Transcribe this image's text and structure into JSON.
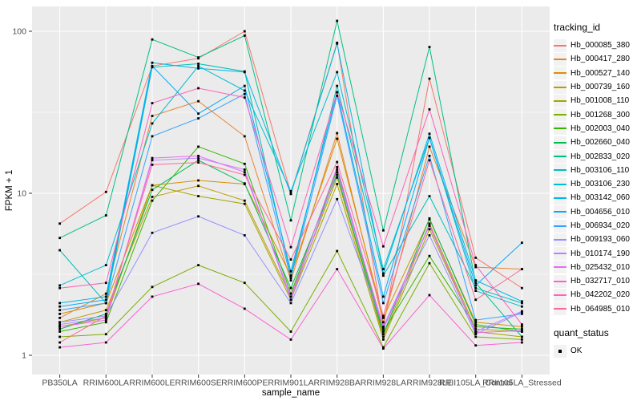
{
  "figure": {
    "background": "#FFFFFF",
    "panel_background": "#EBEBEB",
    "gridline_color": "#FFFFFF",
    "axis_text_color": "#4D4D4D",
    "tick_mark_color": "#333333",
    "point_color": "#000000",
    "point_shape": "square"
  },
  "chart_data": {
    "type": "line",
    "title": "",
    "xlabel": "sample_name",
    "ylabel": "FPKM + 1",
    "y_scale": "log10",
    "y_ticks": [
      1,
      10,
      100
    ],
    "y_tick_labels": [
      "1",
      "10",
      "100"
    ],
    "y_minor_gridlines": [
      3.162,
      31.623
    ],
    "ylim": [
      0.76,
      142
    ],
    "grid": "on",
    "legend_position": "right",
    "categories": [
      "PB350LA",
      "RRIM600LA",
      "RRIM600LE",
      "RRIM600SE",
      "RRIM600PE",
      "RRIM901LA",
      "RRIM928BA",
      "RRIM928LA",
      "RRIM928LE",
      "RRII105LA_Control",
      "RRII105LA_Stressed"
    ],
    "series": [
      {
        "name": "Hb_000085_380",
        "color": "#F8766D",
        "values": [
          6.5,
          10.2,
          61,
          68,
          100,
          10,
          85,
          1.5,
          51,
          4.0,
          2.6
        ]
      },
      {
        "name": "Hb_000417_280",
        "color": "#EA8331",
        "values": [
          1.7,
          2.4,
          30,
          37,
          22.5,
          2.9,
          23.5,
          1.6,
          19.4,
          3.5,
          3.4
        ]
      },
      {
        "name": "Hb_000527_140",
        "color": "#D89000",
        "values": [
          1.8,
          2.1,
          11.2,
          12,
          11.4,
          3.1,
          21.7,
          1.7,
          6.9,
          1.6,
          1.5
        ]
      },
      {
        "name": "Hb_000739_160",
        "color": "#C09B00",
        "values": [
          1.6,
          1.9,
          9.5,
          11.1,
          9,
          2.3,
          12.5,
          1.3,
          6.5,
          1.45,
          1.4
        ]
      },
      {
        "name": "Hb_001008_110",
        "color": "#A3A500",
        "values": [
          1.5,
          1.7,
          11.2,
          9.6,
          8.6,
          2.2,
          11.4,
          1.25,
          6,
          1.4,
          1.3
        ]
      },
      {
        "name": "Hb_001268_300",
        "color": "#7CAE00",
        "values": [
          1.3,
          1.35,
          2.64,
          3.6,
          2.8,
          1.4,
          4.4,
          1.12,
          3.7,
          1.3,
          1.25
        ]
      },
      {
        "name": "Hb_002003_040",
        "color": "#39B600",
        "values": [
          1.4,
          1.6,
          9,
          19.4,
          15.2,
          2.4,
          14,
          1.4,
          4.1,
          1.5,
          1.45
        ]
      },
      {
        "name": "Hb_002660_040",
        "color": "#00BB4E",
        "values": [
          1.45,
          1.8,
          10.5,
          16,
          11.5,
          2.6,
          13,
          1.35,
          7,
          1.55,
          1.4
        ]
      },
      {
        "name": "Hb_002833_020",
        "color": "#00C087",
        "values": [
          5.3,
          7.3,
          89,
          69,
          94,
          6.8,
          116,
          5.9,
          80,
          2.8,
          1.3
        ]
      },
      {
        "name": "Hb_003106_110",
        "color": "#00C0B8",
        "values": [
          4.45,
          2.1,
          60,
          63,
          56.5,
          3.1,
          46,
          3.1,
          9.6,
          2.6,
          2.1
        ]
      },
      {
        "name": "Hb_003106_230",
        "color": "#00BDD0",
        "values": [
          2.7,
          3.6,
          27,
          61,
          43,
          10.3,
          56,
          3.4,
          22,
          2.5,
          2.0
        ]
      },
      {
        "name": "Hb_003142_060",
        "color": "#00B8E5",
        "values": [
          2.1,
          2.3,
          64,
          59,
          56,
          9.9,
          84,
          3.2,
          23.3,
          2.9,
          2.15
        ]
      },
      {
        "name": "Hb_004656_010",
        "color": "#00ACFC",
        "values": [
          2.0,
          2.2,
          61,
          31,
          46,
          3.3,
          42,
          2.3,
          22,
          2.7,
          4.95
        ]
      },
      {
        "name": "Hb_006934_020",
        "color": "#35A2FF",
        "values": [
          1.9,
          2.1,
          22.5,
          29,
          41,
          3.0,
          40,
          2.1,
          17,
          1.65,
          1.8
        ]
      },
      {
        "name": "Hb_009193_060",
        "color": "#9590FF",
        "values": [
          1.6,
          1.75,
          5.7,
          7.2,
          5.5,
          2.1,
          9.2,
          1.5,
          5.5,
          1.35,
          1.85
        ]
      },
      {
        "name": "Hb_010174_190",
        "color": "#BF80FF",
        "values": [
          1.55,
          1.7,
          16,
          16.5,
          14,
          2.2,
          13.5,
          1.5,
          6.3,
          1.4,
          1.87
        ]
      },
      {
        "name": "Hb_025432_010",
        "color": "#E76BF3",
        "values": [
          1.5,
          1.65,
          16.5,
          17,
          13.5,
          2.3,
          14.5,
          1.45,
          6.4,
          1.38,
          1.42
        ]
      },
      {
        "name": "Hb_032717_010",
        "color": "#FD61D1",
        "values": [
          1.12,
          1.2,
          2.3,
          2.76,
          1.94,
          1.25,
          3.4,
          1.1,
          2.35,
          1.15,
          1.2
        ]
      },
      {
        "name": "Hb_042202_020",
        "color": "#FF62BC",
        "values": [
          2.6,
          2.8,
          36,
          44.5,
          39,
          4.65,
          42,
          4.7,
          33,
          3.6,
          1.55
        ]
      },
      {
        "name": "Hb_064985_010",
        "color": "#FF6A98",
        "values": [
          1.2,
          1.75,
          15,
          15.5,
          13,
          3.9,
          15.6,
          1.75,
          16,
          2.2,
          3.4
        ]
      }
    ],
    "legend": {
      "tracking_legend_title": "tracking_id",
      "quant_legend_title": "quant_status",
      "quant_status_value": "OK",
      "key_background": "#F2F2F2"
    }
  }
}
